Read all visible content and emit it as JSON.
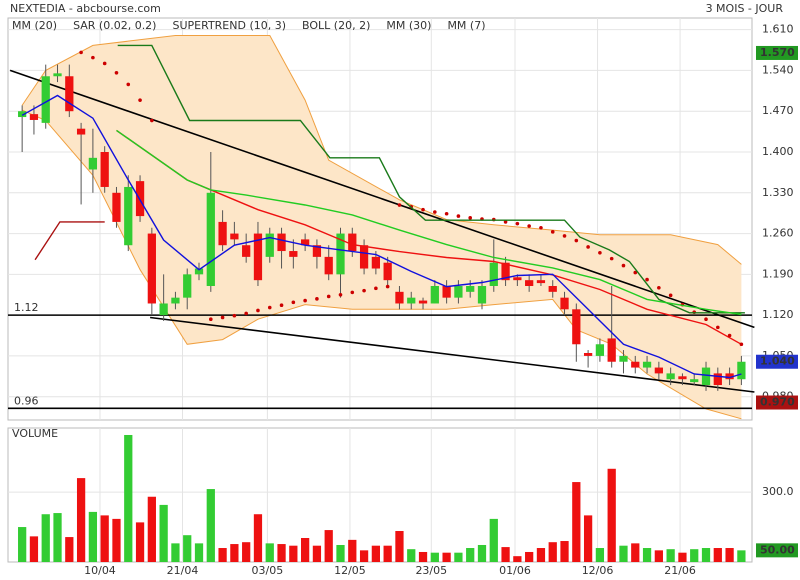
{
  "chart_data": {
    "type": "candlestick",
    "title": "NEXTEDIA - abcbourse.com",
    "period": "3 MOIS - JOUR",
    "up_color": "#33cc33",
    "down_color": "#ee1111",
    "grid": true,
    "xlim": [
      -1.2,
      61.9
    ],
    "xticks": [
      {
        "value": 6.6,
        "label": "10/04"
      },
      {
        "value": 13.6,
        "label": "21/04"
      },
      {
        "value": 20.8,
        "label": "03/05"
      },
      {
        "value": 27.8,
        "label": "12/05"
      },
      {
        "value": 34.7,
        "label": "23/05"
      },
      {
        "value": 41.8,
        "label": "01/06"
      },
      {
        "value": 48.8,
        "label": "12/06"
      },
      {
        "value": 55.8,
        "label": "21/06"
      }
    ],
    "ylim": [
      0.94,
      1.63
    ],
    "yticks": [
      {
        "value": 1.61,
        "label": "1.610"
      },
      {
        "value": 1.54,
        "label": "1.540"
      },
      {
        "value": 1.47,
        "label": "1.470"
      },
      {
        "value": 1.4,
        "label": "1.400"
      },
      {
        "value": 1.33,
        "label": "1.330"
      },
      {
        "value": 1.26,
        "label": "1.260"
      },
      {
        "value": 1.19,
        "label": "1.190"
      },
      {
        "value": 1.12,
        "label": "1.120"
      },
      {
        "value": 1.05,
        "label": "1.050"
      },
      {
        "value": 0.98,
        "label": "0.980"
      }
    ],
    "open": [
      1.46,
      1.465,
      1.45,
      1.53,
      1.53,
      1.44,
      1.37,
      1.4,
      1.33,
      1.24,
      1.35,
      1.26,
      1.12,
      1.14,
      1.15,
      1.19,
      1.17,
      1.28,
      1.26,
      1.24,
      1.26,
      1.22,
      1.26,
      1.23,
      1.25,
      1.24,
      1.22,
      1.19,
      1.26,
      1.24,
      1.22,
      1.21,
      1.16,
      1.14,
      1.145,
      1.14,
      1.17,
      1.15,
      1.16,
      1.14,
      1.17,
      1.21,
      1.185,
      1.18,
      1.18,
      1.17,
      1.15,
      1.13,
      1.055,
      1.05,
      1.08,
      1.04,
      1.04,
      1.03,
      1.03,
      1.01,
      1.015,
      1.005,
      1.0,
      1.02,
      1.02,
      1.01
    ],
    "high": [
      1.48,
      1.48,
      1.55,
      1.55,
      1.55,
      1.45,
      1.44,
      1.41,
      1.34,
      1.36,
      1.36,
      1.27,
      1.19,
      1.16,
      1.2,
      1.21,
      1.4,
      1.3,
      1.28,
      1.26,
      1.28,
      1.27,
      1.27,
      1.25,
      1.26,
      1.25,
      1.24,
      1.27,
      1.27,
      1.25,
      1.23,
      1.22,
      1.17,
      1.16,
      1.15,
      1.18,
      1.18,
      1.18,
      1.18,
      1.18,
      1.25,
      1.22,
      1.19,
      1.19,
      1.19,
      1.18,
      1.16,
      1.14,
      1.06,
      1.08,
      1.17,
      1.06,
      1.05,
      1.05,
      1.04,
      1.03,
      1.02,
      1.02,
      1.04,
      1.03,
      1.03,
      1.05
    ],
    "low": [
      1.4,
      1.43,
      1.44,
      1.52,
      1.46,
      1.31,
      1.33,
      1.33,
      1.27,
      1.23,
      1.28,
      1.12,
      1.11,
      1.13,
      1.13,
      1.18,
      1.16,
      1.23,
      1.24,
      1.21,
      1.17,
      1.21,
      1.2,
      1.2,
      1.23,
      1.2,
      1.18,
      1.15,
      1.22,
      1.19,
      1.19,
      1.17,
      1.13,
      1.13,
      1.13,
      1.14,
      1.14,
      1.14,
      1.15,
      1.13,
      1.16,
      1.17,
      1.17,
      1.16,
      1.17,
      1.15,
      1.12,
      1.04,
      1.03,
      1.04,
      1.03,
      1.02,
      1.02,
      1.02,
      1.01,
      1.0,
      1.0,
      1.0,
      0.99,
      0.99,
      1.0,
      1.0
    ],
    "close": [
      1.47,
      1.455,
      1.53,
      1.535,
      1.47,
      1.43,
      1.39,
      1.34,
      1.28,
      1.34,
      1.29,
      1.14,
      1.14,
      1.15,
      1.19,
      1.2,
      1.33,
      1.24,
      1.25,
      1.22,
      1.18,
      1.26,
      1.23,
      1.22,
      1.24,
      1.22,
      1.19,
      1.26,
      1.23,
      1.2,
      1.2,
      1.18,
      1.14,
      1.15,
      1.14,
      1.17,
      1.15,
      1.17,
      1.17,
      1.17,
      1.21,
      1.18,
      1.18,
      1.17,
      1.175,
      1.16,
      1.13,
      1.07,
      1.05,
      1.07,
      1.04,
      1.05,
      1.03,
      1.04,
      1.02,
      1.02,
      1.01,
      1.01,
      1.03,
      1.0,
      1.01,
      1.04
    ],
    "indicators": [
      {
        "name": "MM (20)",
        "color": "#ee1111",
        "kind": "line",
        "lines": [
          {
            "x": [
              8,
              14,
              18,
              20,
              24,
              28,
              32,
              36,
              40,
              45,
              49,
              53,
              58,
              61
            ],
            "values": [
              1.437,
              1.352,
              1.318,
              1.301,
              1.275,
              1.241,
              1.229,
              1.219,
              1.212,
              1.189,
              1.164,
              1.13,
              1.104,
              1.07
            ]
          }
        ]
      },
      {
        "name": "SAR (0.02, 0.2)",
        "color": "#cc0000",
        "kind": "dots",
        "values": [
          null,
          null,
          null,
          null,
          null,
          1.571,
          1.562,
          1.552,
          1.536,
          1.516,
          1.489,
          1.454,
          null,
          null,
          null,
          null,
          1.113,
          1.116,
          1.119,
          1.123,
          1.128,
          1.133,
          1.137,
          1.142,
          1.145,
          1.148,
          1.152,
          1.155,
          1.159,
          1.162,
          1.166,
          1.169,
          1.309,
          1.306,
          1.301,
          1.297,
          1.294,
          1.29,
          1.287,
          1.285,
          1.284,
          1.28,
          1.277,
          1.273,
          1.27,
          1.263,
          1.256,
          1.248,
          1.237,
          1.227,
          1.217,
          1.205,
          1.193,
          1.181,
          1.167,
          1.154,
          1.138,
          1.125,
          1.113,
          1.099,
          1.085,
          1.07
        ]
      },
      {
        "name": "SUPERTREND (10, 3)",
        "color": "#1a7a1a",
        "kind": "line",
        "lines": [
          {
            "x": [
              8.1,
              11,
              14.2,
              23.6,
              26.1,
              30.3,
              32,
              34.2,
              46,
              47.3,
              49.8,
              51.5,
              54,
              56.6,
              61.3
            ],
            "values": [
              1.583,
              1.583,
              1.454,
              1.454,
              1.39,
              1.39,
              1.323,
              1.283,
              1.283,
              1.254,
              1.232,
              1.212,
              1.147,
              1.124,
              1.124
            ]
          },
          {
            "x": [
              1.1,
              3.2,
              7
            ],
            "values": [
              1.215,
              1.28,
              1.28
            ],
            "color": "#aa1111"
          }
        ]
      },
      {
        "name": "BOLL (20, 2)",
        "color": "#f0a040",
        "fill": "#fde6c8",
        "kind": "band",
        "lines": [
          {
            "x": [
              0,
              2,
              6,
              13,
              21,
              24,
              26,
              32,
              36,
              40,
              45,
              49,
              55,
              59,
              61
            ],
            "values": [
              1.48,
              1.54,
              1.583,
              1.6,
              1.6,
              1.489,
              1.386,
              1.318,
              1.284,
              1.275,
              1.266,
              1.258,
              1.258,
              1.241,
              1.207
            ]
          },
          {
            "x": [
              0,
              2,
              6,
              10,
              14,
              17,
              20,
              24,
              28,
              32,
              36,
              40,
              45,
              47,
              50,
              53,
              58,
              61
            ],
            "values": [
              1.472,
              1.454,
              1.36,
              1.198,
              1.07,
              1.078,
              1.113,
              1.138,
              1.13,
              1.13,
              1.13,
              1.138,
              1.147,
              1.095,
              1.07,
              1.019,
              0.959,
              0.942
            ]
          }
        ]
      },
      {
        "name": "MM (30)",
        "color": "#22cc22",
        "kind": "line",
        "lines": [
          {
            "x": [
              8,
              14,
              16,
              19,
              24,
              28,
              32,
              36,
              40,
              45,
              49,
              53,
              58,
              61
            ],
            "values": [
              1.437,
              1.352,
              1.335,
              1.326,
              1.309,
              1.292,
              1.266,
              1.241,
              1.219,
              1.201,
              1.181,
              1.147,
              1.13,
              1.121
            ]
          }
        ]
      },
      {
        "name": "MM (7)",
        "color": "#1111dd",
        "kind": "line",
        "lines": [
          {
            "x": [
              0,
              3,
              6,
              9,
              12,
              15,
              18,
              21,
              24,
              27,
              30,
              33,
              36,
              39,
              42,
              45,
              48,
              51,
              54,
              57,
              60,
              61
            ],
            "values": [
              1.463,
              1.497,
              1.458,
              1.352,
              1.249,
              1.198,
              1.24,
              1.253,
              1.24,
              1.232,
              1.224,
              1.195,
              1.169,
              1.176,
              1.188,
              1.19,
              1.13,
              1.07,
              1.048,
              1.019,
              1.013,
              1.019
            ]
          }
        ]
      }
    ],
    "trendlines": [
      {
        "x": [
          -1.02,
          62.1
        ],
        "values": [
          1.54,
          1.099
        ]
      },
      {
        "x": [
          10.85,
          62.1
        ],
        "values": [
          1.116,
          0.988
        ]
      }
    ],
    "levels": [
      {
        "value": 1.12,
        "label": "1.12"
      },
      {
        "value": 0.96,
        "label": "0.96"
      }
    ],
    "price_markers": [
      {
        "value": 1.57,
        "label": "1.570",
        "color": "#229922"
      },
      {
        "value": 1.04,
        "label": "1.040",
        "color": "#2233cc"
      },
      {
        "value": 0.97,
        "label": "0.970",
        "color": "#aa1111"
      }
    ],
    "volume": {
      "title": "VOLUME",
      "ylim": [
        0,
        575
      ],
      "yticks": [
        {
          "value": 300,
          "label": "300.0"
        }
      ],
      "values": [
        150,
        110,
        205,
        210,
        107,
        360,
        215,
        200,
        185,
        545,
        170,
        280,
        245,
        80,
        115,
        80,
        313,
        60,
        77,
        85,
        205,
        80,
        77,
        70,
        103,
        70,
        137,
        73,
        95,
        50,
        70,
        70,
        133,
        55,
        43,
        40,
        40,
        40,
        60,
        73,
        185,
        64,
        25,
        43,
        60,
        85,
        90,
        343,
        200,
        60,
        400,
        70,
        80,
        60,
        50,
        55,
        40,
        55,
        60,
        60,
        60,
        50
      ],
      "marker": {
        "value": 50,
        "label": "50.00",
        "color": "#229922"
      }
    }
  }
}
